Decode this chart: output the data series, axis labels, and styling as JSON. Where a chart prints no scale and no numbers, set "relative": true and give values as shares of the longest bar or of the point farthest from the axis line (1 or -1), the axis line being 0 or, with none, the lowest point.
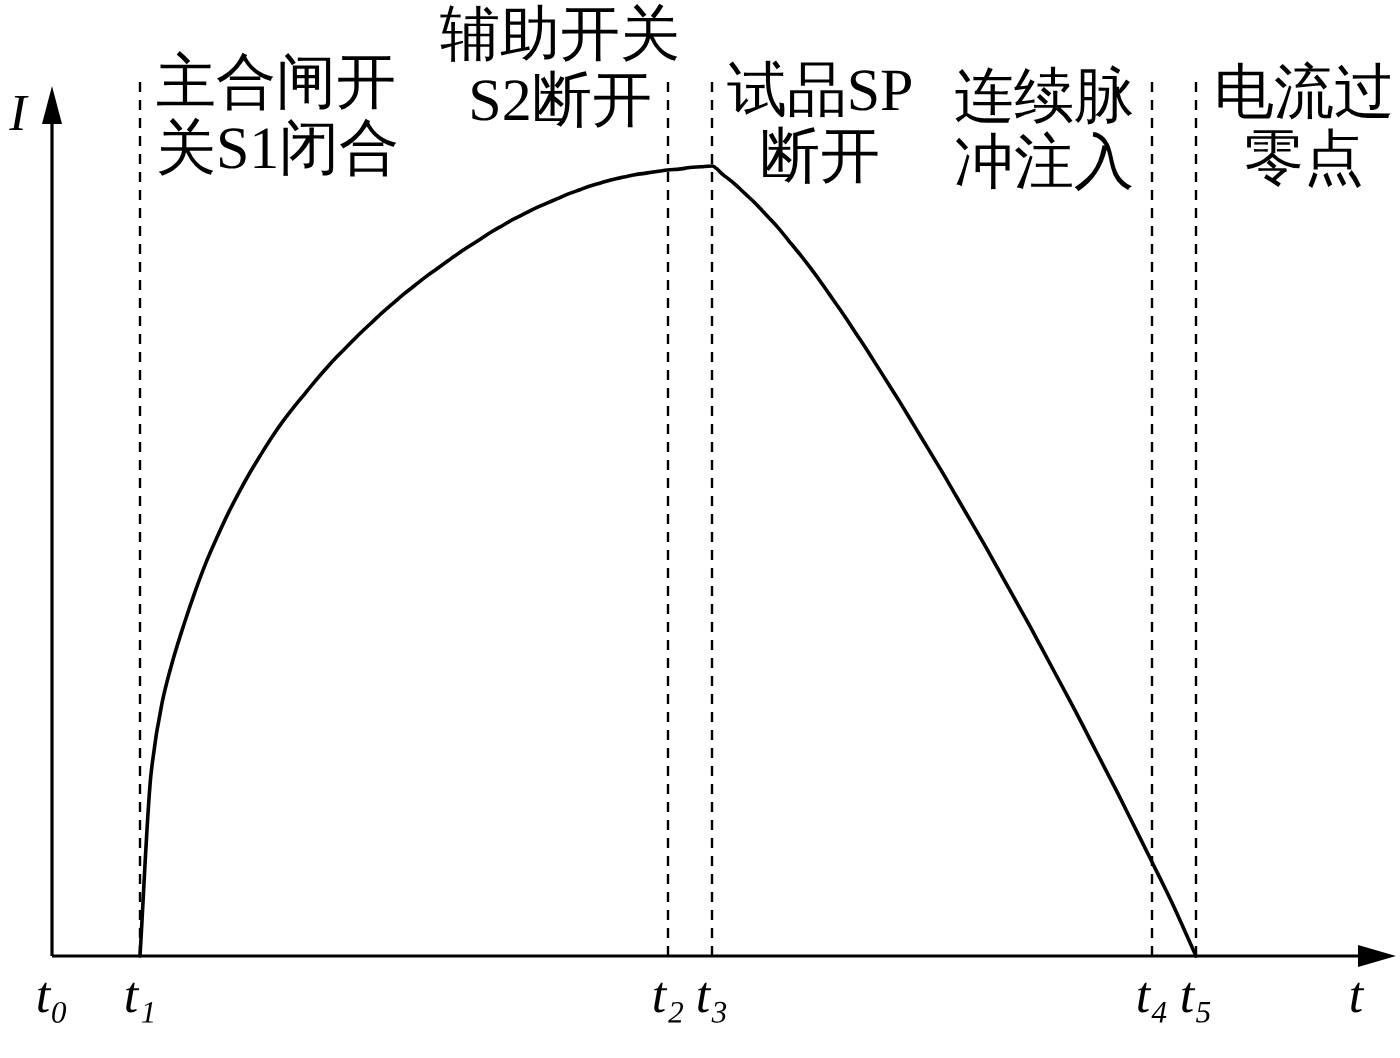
{
  "chart_data": {
    "type": "line",
    "relative": true,
    "xlabel": "t",
    "ylabel": "I",
    "color": "#000000",
    "line_style": "solid",
    "tick_labels": "x",
    "categories": [
      "t₀",
      null,
      null,
      null,
      null,
      null,
      null,
      null,
      "t₁",
      null,
      null,
      null,
      null,
      null,
      null,
      null,
      null,
      null,
      null,
      null,
      null,
      null,
      null,
      null,
      null,
      null,
      null,
      null,
      null,
      null,
      null,
      null,
      null,
      null,
      null,
      null,
      null,
      null,
      null,
      null,
      null,
      null,
      null,
      null,
      null,
      null,
      null,
      null,
      null,
      null,
      null,
      null,
      null,
      null,
      null,
      null,
      "t₂",
      null,
      null,
      null,
      "t₃",
      null,
      null,
      null,
      null,
      null,
      null,
      null,
      null,
      null,
      null,
      null,
      null,
      null,
      null,
      null,
      null,
      null,
      null,
      null,
      null,
      null,
      null,
      null,
      null,
      null,
      null,
      null,
      null,
      null,
      null,
      null,
      null,
      null,
      null,
      null,
      null,
      null,
      null,
      null,
      "t₄",
      null,
      null,
      null,
      "t₅",
      null,
      null,
      null,
      null,
      null,
      null,
      null,
      null,
      null,
      null,
      null,
      null,
      null,
      null,
      null,
      null
    ],
    "values": [
      null,
      null,
      null,
      null,
      null,
      null,
      null,
      null,
      0,
      0.23,
      0.32,
      0.375,
      0.42,
      0.461,
      0.498,
      0.53,
      0.56,
      0.587,
      0.612,
      0.635,
      0.657,
      0.677,
      0.695,
      0.712,
      0.729,
      0.745,
      0.76,
      0.774,
      0.788,
      0.801,
      0.814,
      0.826,
      0.838,
      0.849,
      0.86,
      0.87,
      0.88,
      0.89,
      0.899,
      0.908,
      0.917,
      0.925,
      0.933,
      0.94,
      0.947,
      0.953,
      0.959,
      0.965,
      0.97,
      0.975,
      0.979,
      0.983,
      0.986,
      0.989,
      0.991,
      0.993,
      0.995,
      0.996,
      0.998,
      0.999,
      1.0,
      0.989,
      0.978,
      0.965,
      0.952,
      0.937,
      0.922,
      0.905,
      0.888,
      0.87,
      0.851,
      0.831,
      0.811,
      0.79,
      0.769,
      0.747,
      0.725,
      0.703,
      0.68,
      0.657,
      0.634,
      0.611,
      0.587,
      0.563,
      0.539,
      0.515,
      0.49,
      0.465,
      0.44,
      0.415,
      0.389,
      0.363,
      0.337,
      0.311,
      0.284,
      0.257,
      0.23,
      0.203,
      0.175,
      0.147,
      0.119,
      0.091,
      0.062,
      0.031,
      0,
      null,
      null,
      null,
      null,
      null,
      null,
      null,
      null,
      null,
      null,
      null,
      null,
      null,
      null,
      null,
      null
    ],
    "ref_lines": [
      {
        "axis": "x",
        "value": "t₁",
        "color": "#000000",
        "line_style": "dashed"
      },
      {
        "axis": "x",
        "value": "t₂",
        "color": "#000000",
        "line_style": "dashed"
      },
      {
        "axis": "x",
        "value": "t₃",
        "color": "#000000",
        "line_style": "dashed"
      },
      {
        "axis": "x",
        "value": "t₄",
        "color": "#000000",
        "line_style": "dashed"
      },
      {
        "axis": "x",
        "value": "t₅",
        "color": "#000000",
        "line_style": "dashed"
      }
    ],
    "annotations": [
      "主合闸开关S1闭合",
      "辅助开关S2断开",
      "试品SP断开",
      "连续脉冲注入",
      "电流过零点"
    ]
  }
}
